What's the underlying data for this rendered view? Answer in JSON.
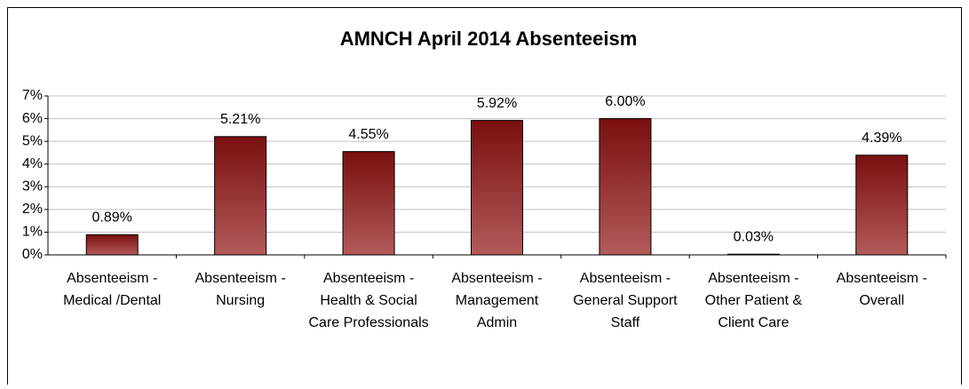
{
  "chart_data": {
    "type": "bar",
    "title": "AMNCH April 2014 Absenteeism",
    "categories": [
      "Absenteeism - Medical /Dental",
      "Absenteeism - Nursing",
      "Absenteeism - Health & Social Care Professionals",
      "Absenteeism - Management Admin",
      "Absenteeism - General Support Staff",
      "Absenteeism - Other Patient & Client Care",
      "Absenteeism - Overall"
    ],
    "values": [
      0.89,
      5.21,
      4.55,
      5.92,
      6.0,
      0.03,
      4.39
    ],
    "value_labels": [
      "0.89%",
      "5.21%",
      "4.55%",
      "5.92%",
      "6.00%",
      "0.03%",
      "4.39%"
    ],
    "color": "#8b1a1a",
    "ylim": [
      0,
      7
    ],
    "yticks": [
      {
        "value": 0,
        "label": "0%"
      },
      {
        "value": 1,
        "label": "1%"
      },
      {
        "value": 2,
        "label": "2%"
      },
      {
        "value": 3,
        "label": "3%"
      },
      {
        "value": 4,
        "label": "4%"
      },
      {
        "value": 5,
        "label": "5%"
      },
      {
        "value": 6,
        "label": "6%"
      },
      {
        "value": 7,
        "label": "7%"
      }
    ],
    "grid": true
  }
}
